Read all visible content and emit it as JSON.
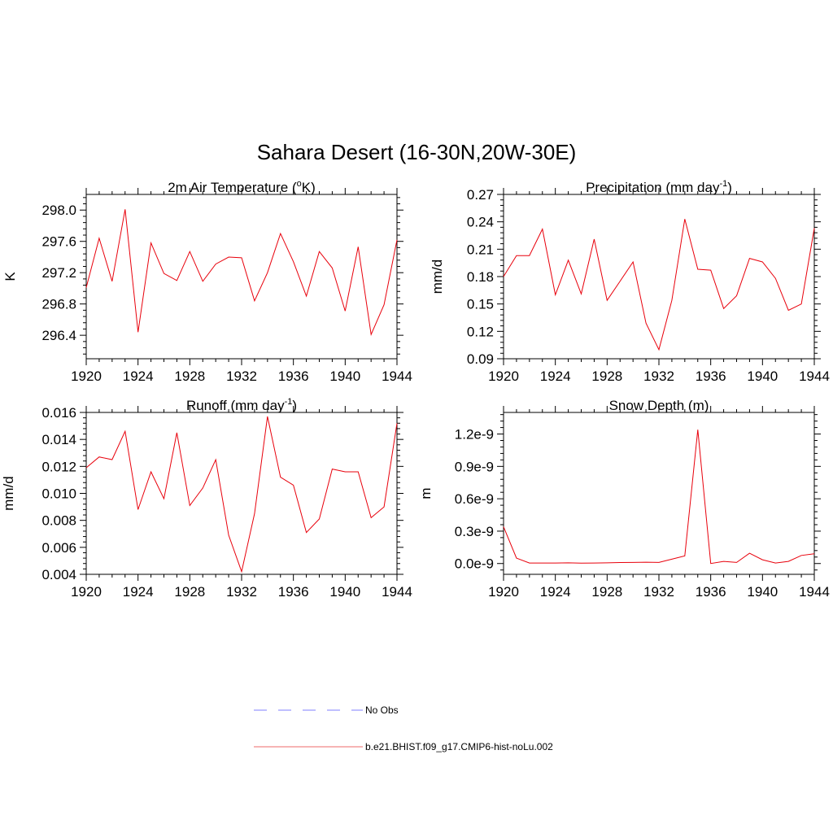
{
  "figure_title": "Sahara Desert (16-30N,20W-30E)",
  "colors": {
    "model": "#e8000b",
    "obs": "#9999ff",
    "axis": "#000000"
  },
  "legend": {
    "obs_label": "No Obs",
    "model_label": "b.e21.BHIST.f09_g17.CMIP6-hist-noLu.002"
  },
  "chart_data": [
    {
      "type": "line",
      "title": "2m Air Temperature (",
      "title_sup": "o",
      "title_tail": "K)",
      "ylabel": "K",
      "x": [
        1920,
        1921,
        1922,
        1923,
        1924,
        1925,
        1926,
        1927,
        1928,
        1929,
        1930,
        1931,
        1932,
        1933,
        1934,
        1935,
        1936,
        1937,
        1938,
        1939,
        1940,
        1941,
        1942,
        1943,
        1944
      ],
      "xlim": [
        1920,
        1944
      ],
      "xticks": [
        "1920",
        "1924",
        "1928",
        "1932",
        "1936",
        "1940",
        "1944"
      ],
      "ylim": [
        296.1,
        298.2
      ],
      "yticks": [
        "296.4",
        "296.8",
        "297.2",
        "297.6",
        "298.0"
      ],
      "series": [
        {
          "values": [
            297.01,
            297.64,
            297.09,
            298.01,
            296.44,
            297.58,
            297.19,
            297.1,
            297.47,
            297.09,
            297.31,
            297.4,
            297.39,
            296.84,
            297.2,
            297.7,
            297.34,
            296.9,
            297.47,
            297.26,
            296.71,
            297.53,
            296.41,
            296.79,
            297.62
          ]
        }
      ]
    },
    {
      "type": "line",
      "title": "Precipitation (mm day",
      "title_sup": "-1",
      "title_tail": ")",
      "ylabel": "mm/d",
      "x": [
        1920,
        1921,
        1922,
        1923,
        1924,
        1925,
        1926,
        1927,
        1928,
        1929,
        1930,
        1931,
        1932,
        1933,
        1934,
        1935,
        1936,
        1937,
        1938,
        1939,
        1940,
        1941,
        1942,
        1943,
        1944
      ],
      "xlim": [
        1920,
        1944
      ],
      "xticks": [
        "1920",
        "1924",
        "1928",
        "1932",
        "1936",
        "1940",
        "1944"
      ],
      "ylim": [
        0.09,
        0.27
      ],
      "yticks": [
        "0.09",
        "0.12",
        "0.15",
        "0.18",
        "0.21",
        "0.24",
        "0.27"
      ],
      "series": [
        {
          "values": [
            0.18,
            0.203,
            0.203,
            0.232,
            0.16,
            0.198,
            0.161,
            0.221,
            0.154,
            0.175,
            0.196,
            0.129,
            0.1,
            0.154,
            0.243,
            0.188,
            0.187,
            0.145,
            0.159,
            0.2,
            0.196,
            0.178,
            0.143,
            0.15,
            0.233
          ]
        }
      ]
    },
    {
      "type": "line",
      "title": "Runoff (mm day",
      "title_sup": "-1",
      "title_tail": ")",
      "ylabel": "mm/d",
      "x": [
        1920,
        1921,
        1922,
        1923,
        1924,
        1925,
        1926,
        1927,
        1928,
        1929,
        1930,
        1931,
        1932,
        1933,
        1934,
        1935,
        1936,
        1937,
        1938,
        1939,
        1940,
        1941,
        1942,
        1943,
        1944
      ],
      "xlim": [
        1920,
        1944
      ],
      "xticks": [
        "1920",
        "1924",
        "1928",
        "1932",
        "1936",
        "1940",
        "1944"
      ],
      "ylim": [
        0.004,
        0.016
      ],
      "yticks": [
        "0.004",
        "0.006",
        "0.008",
        "0.010",
        "0.012",
        "0.014",
        "0.016"
      ],
      "series": [
        {
          "values": [
            0.0119,
            0.0127,
            0.0125,
            0.0146,
            0.0088,
            0.0116,
            0.0096,
            0.0145,
            0.0091,
            0.0104,
            0.0125,
            0.0069,
            0.0042,
            0.0085,
            0.0157,
            0.0112,
            0.0106,
            0.0071,
            0.0081,
            0.0118,
            0.0116,
            0.0116,
            0.0082,
            0.009,
            0.0152
          ]
        }
      ]
    },
    {
      "type": "line",
      "title": "Snow Depth (m)",
      "title_sup": "",
      "title_tail": "",
      "ylabel": "m",
      "x": [
        1920,
        1921,
        1922,
        1923,
        1924,
        1925,
        1926,
        1927,
        1928,
        1929,
        1930,
        1931,
        1932,
        1933,
        1934,
        1935,
        1936,
        1937,
        1938,
        1939,
        1940,
        1941,
        1942,
        1943,
        1944
      ],
      "xlim": [
        1920,
        1944
      ],
      "xticks": [
        "1920",
        "1924",
        "1928",
        "1932",
        "1936",
        "1940",
        "1944"
      ],
      "ylim": [
        -1e-10,
        1.4e-09
      ],
      "yticks": [
        "0.0e-9",
        "0.3e-9",
        "0.6e-9",
        "0.9e-9",
        "1.2e-9"
      ],
      "series": [
        {
          "values": [
            3.4e-10,
            5e-11,
            5e-12,
            5e-12,
            5e-12,
            6e-12,
            4e-12,
            5e-12,
            6e-12,
            9e-12,
            1e-11,
            1.2e-11,
            1e-11,
            4e-11,
            7e-11,
            1.24e-09,
            0.0,
            2e-11,
            1e-11,
            9.5e-11,
            3.5e-11,
            5e-12,
            2e-11,
            7.5e-11,
            9e-11
          ]
        }
      ]
    }
  ]
}
